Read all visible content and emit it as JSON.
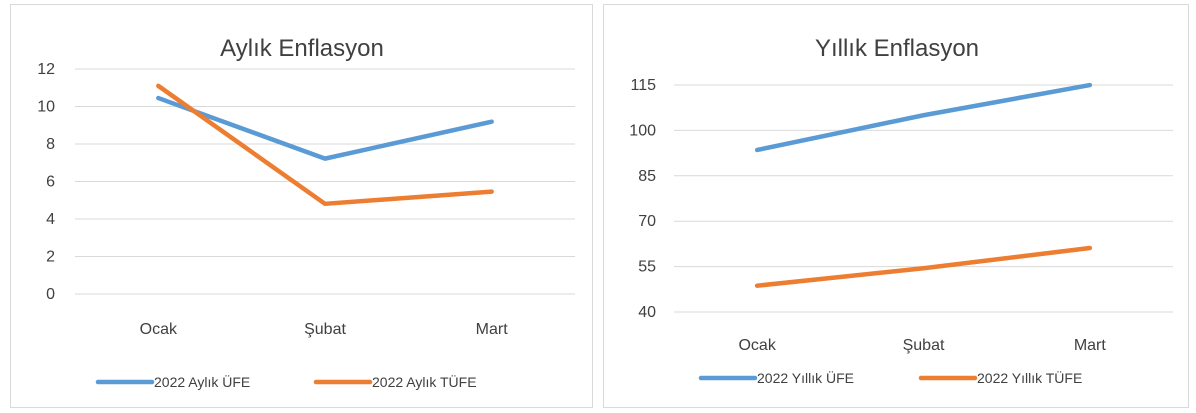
{
  "chart_data": [
    {
      "type": "line",
      "title": "Aylık Enflasyon",
      "categories": [
        "Ocak",
        "Şubat",
        "Mart"
      ],
      "series": [
        {
          "name": "2022 Aylık ÜFE",
          "color": "#5b9bd5",
          "values": [
            10.45,
            7.22,
            9.19
          ]
        },
        {
          "name": "2022 Aylık TÜFE",
          "color": "#ed7d31",
          "values": [
            11.1,
            4.81,
            5.46
          ]
        }
      ],
      "y_ticks": [
        "0",
        "2",
        "4",
        "6",
        "8",
        "10",
        "12"
      ],
      "ylim": [
        0,
        12
      ],
      "grid": true,
      "legend": "bottom"
    },
    {
      "type": "line",
      "title": "Yıllık Enflasyon",
      "categories": [
        "Ocak",
        "Şubat",
        "Mart"
      ],
      "series": [
        {
          "name": "2022 Yıllık ÜFE",
          "color": "#5b9bd5",
          "values": [
            93.53,
            105.01,
            114.97
          ]
        },
        {
          "name": "2022 Yıllık TÜFE",
          "color": "#ed7d31",
          "values": [
            48.69,
            54.44,
            61.14
          ]
        }
      ],
      "y_ticks": [
        "40",
        "55",
        "70",
        "85",
        "100",
        "115"
      ],
      "ylim": [
        40,
        115
      ],
      "grid": true,
      "legend": "bottom"
    }
  ]
}
